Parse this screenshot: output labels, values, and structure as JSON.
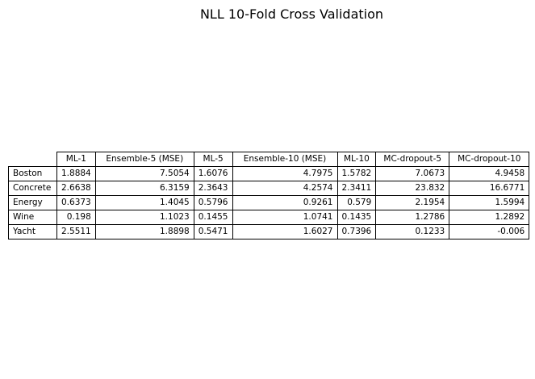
{
  "chart_data": {
    "type": "table",
    "title": "NLL 10-Fold Cross Validation",
    "columns": [
      "ML-1",
      "Ensemble-5 (MSE)",
      "ML-5",
      "Ensemble-10 (MSE)",
      "ML-10",
      "MC-dropout-5",
      "MC-dropout-10"
    ],
    "rows": [
      {
        "label": "Boston",
        "values": [
          "1.8884",
          "7.5054",
          "1.6076",
          "4.7975",
          "1.5782",
          "7.0673",
          "4.9458"
        ]
      },
      {
        "label": "Concrete",
        "values": [
          "2.6638",
          "6.3159",
          "2.3643",
          "4.2574",
          "2.3411",
          "23.832",
          "16.6771"
        ]
      },
      {
        "label": "Energy",
        "values": [
          "0.6373",
          "1.4045",
          "0.5796",
          "0.9261",
          "0.579",
          "2.1954",
          "1.5994"
        ]
      },
      {
        "label": "Wine",
        "values": [
          "0.198",
          "1.1023",
          "0.1455",
          "1.0741",
          "0.1435",
          "1.2786",
          "1.2892"
        ]
      },
      {
        "label": "Yacht",
        "values": [
          "2.5511",
          "1.8898",
          "0.5471",
          "1.6027",
          "0.7396",
          "0.1233",
          "-0.006"
        ]
      }
    ]
  }
}
